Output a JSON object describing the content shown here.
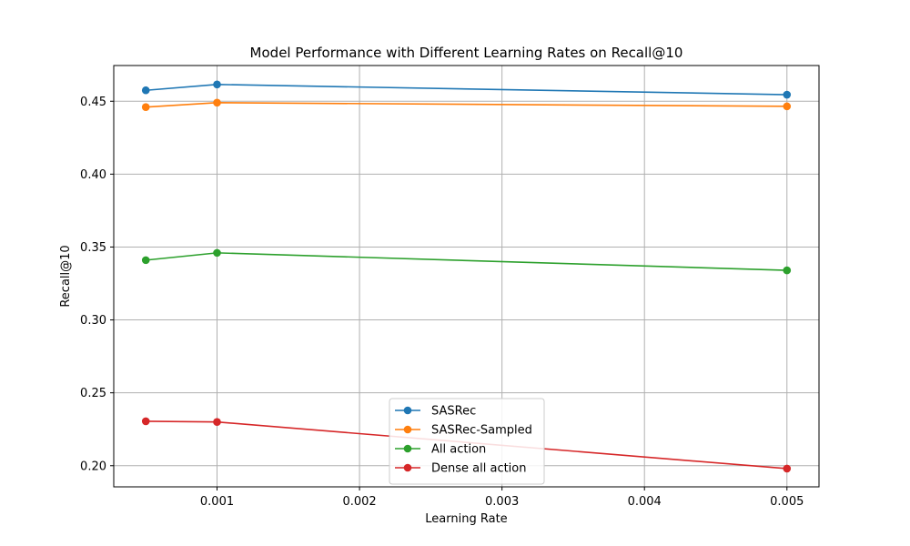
{
  "chart_data": {
    "type": "line",
    "title": "Model Performance with Different Learning Rates on Recall@10",
    "xlabel": "Learning Rate",
    "ylabel": "Recall@10",
    "x": [
      0.0005,
      0.001,
      0.005
    ],
    "xlim": [
      0.000275,
      0.005225
    ],
    "ylim": [
      0.1855,
      0.4745
    ],
    "xticks": [
      0.001,
      0.002,
      0.003,
      0.004,
      0.005
    ],
    "xtick_labels": [
      "0.001",
      "0.002",
      "0.003",
      "0.004",
      "0.005"
    ],
    "yticks": [
      0.2,
      0.25,
      0.3,
      0.35,
      0.4,
      0.45
    ],
    "ytick_labels": [
      "0.20",
      "0.25",
      "0.30",
      "0.35",
      "0.40",
      "0.45"
    ],
    "grid": true,
    "legend_position": "lower-center",
    "series": [
      {
        "name": "SASRec",
        "color": "#1f77b4",
        "values": [
          0.4575,
          0.4615,
          0.4545
        ]
      },
      {
        "name": "SASRec-Sampled",
        "color": "#ff7f0e",
        "values": [
          0.446,
          0.449,
          0.4465
        ]
      },
      {
        "name": "All action",
        "color": "#2ca02c",
        "values": [
          0.341,
          0.346,
          0.334
        ]
      },
      {
        "name": "Dense all action",
        "color": "#d62728",
        "values": [
          0.2305,
          0.23,
          0.198
        ]
      }
    ]
  }
}
